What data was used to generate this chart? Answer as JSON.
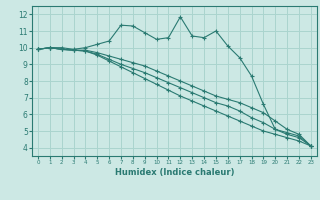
{
  "xlabel": "Humidex (Indice chaleur)",
  "ylabel": "",
  "bg_color": "#cce8e4",
  "grid_color": "#aad4ce",
  "line_color": "#2a7a72",
  "xlim": [
    -0.5,
    23.5
  ],
  "ylim": [
    3.5,
    12.5
  ],
  "xticks": [
    0,
    1,
    2,
    3,
    4,
    5,
    6,
    7,
    8,
    9,
    10,
    11,
    12,
    13,
    14,
    15,
    16,
    17,
    18,
    19,
    20,
    21,
    22,
    23
  ],
  "yticks": [
    4,
    5,
    6,
    7,
    8,
    9,
    10,
    11,
    12
  ],
  "lines": [
    {
      "x": [
        0,
        1,
        2,
        3,
        4,
        5,
        6,
        7,
        8,
        9,
        10,
        11,
        12,
        13,
        14,
        15,
        16,
        17,
        18,
        19,
        20,
        21,
        22,
        23
      ],
      "y": [
        9.9,
        10.0,
        10.0,
        9.9,
        10.0,
        10.2,
        10.4,
        11.35,
        11.3,
        10.9,
        10.5,
        10.6,
        11.85,
        10.7,
        10.6,
        11.0,
        10.1,
        9.4,
        8.3,
        6.6,
        5.1,
        4.9,
        4.7,
        4.1
      ]
    },
    {
      "x": [
        0,
        1,
        2,
        3,
        4,
        5,
        6,
        7,
        8,
        9,
        10,
        11,
        12,
        13,
        14,
        15,
        16,
        17,
        18,
        19,
        20,
        21,
        22,
        23
      ],
      "y": [
        9.9,
        10.0,
        9.9,
        9.85,
        9.85,
        9.7,
        9.5,
        9.3,
        9.1,
        8.9,
        8.6,
        8.3,
        8.0,
        7.7,
        7.4,
        7.1,
        6.9,
        6.7,
        6.4,
        6.1,
        5.6,
        5.1,
        4.8,
        4.1
      ]
    },
    {
      "x": [
        0,
        1,
        2,
        3,
        4,
        5,
        6,
        7,
        8,
        9,
        10,
        11,
        12,
        13,
        14,
        15,
        16,
        17,
        18,
        19,
        20,
        21,
        22,
        23
      ],
      "y": [
        9.9,
        10.0,
        9.9,
        9.85,
        9.8,
        9.6,
        9.3,
        9.0,
        8.75,
        8.5,
        8.2,
        7.9,
        7.6,
        7.3,
        7.0,
        6.7,
        6.5,
        6.2,
        5.8,
        5.5,
        5.1,
        4.8,
        4.6,
        4.1
      ]
    },
    {
      "x": [
        0,
        1,
        2,
        3,
        4,
        5,
        6,
        7,
        8,
        9,
        10,
        11,
        12,
        13,
        14,
        15,
        16,
        17,
        18,
        19,
        20,
        21,
        22,
        23
      ],
      "y": [
        9.9,
        10.0,
        9.9,
        9.85,
        9.8,
        9.55,
        9.2,
        8.85,
        8.5,
        8.15,
        7.8,
        7.45,
        7.1,
        6.8,
        6.5,
        6.2,
        5.9,
        5.6,
        5.3,
        5.0,
        4.8,
        4.6,
        4.4,
        4.1
      ]
    }
  ]
}
